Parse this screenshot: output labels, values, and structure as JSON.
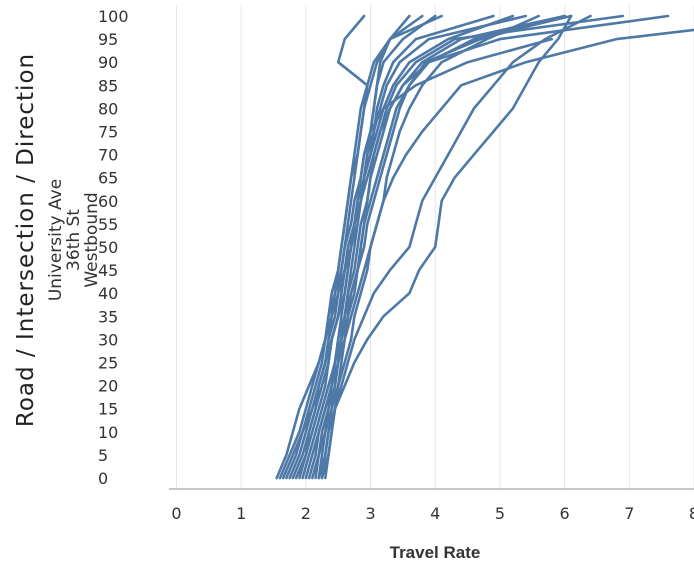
{
  "chart_data": {
    "type": "line",
    "xlabel": "Travel Rate",
    "ylabel": "",
    "xlim": [
      -0.1,
      8.0
    ],
    "ylim": [
      0,
      100
    ],
    "x_ticks": [
      "0",
      "1",
      "2",
      "3",
      "4",
      "5",
      "6",
      "7",
      "8"
    ],
    "y_ticks": [
      "0",
      "5",
      "10",
      "15",
      "20",
      "25",
      "30",
      "35",
      "40",
      "45",
      "50",
      "55",
      "60",
      "65",
      "70",
      "75",
      "80",
      "85",
      "90",
      "95",
      "100"
    ],
    "row_header": {
      "title": "Road / Intersection / Direction",
      "values": [
        "University Ave",
        "36th St",
        "Westbound"
      ]
    },
    "grid": {
      "vertical": true,
      "horizontal": false
    },
    "color": "#4e79a7",
    "series": [
      {
        "x": [
          1.55,
          1.7,
          1.8,
          1.9,
          2.05,
          2.2,
          2.3,
          2.4,
          2.45,
          2.55,
          2.6,
          2.7,
          2.75,
          2.85,
          2.9,
          3.0,
          3.2,
          3.7,
          4.5,
          5.8
        ],
        "y": [
          0,
          5,
          10,
          15,
          20,
          25,
          30,
          35,
          40,
          45,
          50,
          55,
          60,
          65,
          70,
          75,
          80,
          85,
          90,
          95
        ]
      },
      {
        "x": [
          1.65,
          1.8,
          1.95,
          2.05,
          2.15,
          2.25,
          2.3,
          2.35,
          2.4,
          2.5,
          2.55,
          2.6,
          2.65,
          2.7,
          2.75,
          2.8,
          2.85,
          2.95,
          3.05,
          3.3,
          3.8
        ],
        "y": [
          0,
          5,
          10,
          15,
          20,
          25,
          30,
          35,
          40,
          45,
          50,
          55,
          60,
          65,
          70,
          75,
          80,
          85,
          90,
          95,
          100
        ]
      },
      {
        "x": [
          1.75,
          1.9,
          2.0,
          2.1,
          2.2,
          2.3,
          2.35,
          2.45,
          2.5,
          2.6,
          2.65,
          2.75,
          2.8,
          2.9,
          3.0,
          3.1,
          3.2,
          3.35,
          3.6,
          4.2,
          5.2
        ],
        "y": [
          0,
          5,
          10,
          15,
          20,
          25,
          30,
          35,
          40,
          45,
          50,
          55,
          60,
          65,
          70,
          75,
          80,
          85,
          90,
          95,
          100
        ]
      },
      {
        "x": [
          1.85,
          2.0,
          2.1,
          2.2,
          2.3,
          2.35,
          2.4,
          2.5,
          2.55,
          2.6,
          2.7,
          2.75,
          2.8,
          2.85,
          2.9,
          3.0,
          3.05,
          3.1,
          3.2,
          3.5,
          4.0
        ],
        "y": [
          0,
          5,
          10,
          15,
          20,
          25,
          30,
          35,
          40,
          45,
          50,
          55,
          60,
          65,
          70,
          75,
          80,
          85,
          90,
          95,
          100
        ]
      },
      {
        "x": [
          1.95,
          2.05,
          2.15,
          2.25,
          2.35,
          2.45,
          2.5,
          2.6,
          2.7,
          2.8,
          2.85,
          2.9,
          3.0,
          3.1,
          3.2,
          3.3,
          3.4,
          3.6,
          3.9,
          4.6,
          6.1
        ],
        "y": [
          0,
          5,
          10,
          15,
          20,
          25,
          30,
          35,
          40,
          45,
          50,
          55,
          60,
          65,
          70,
          75,
          80,
          85,
          90,
          95,
          100
        ]
      },
      {
        "x": [
          2.05,
          2.15,
          2.2,
          2.3,
          2.4,
          2.45,
          2.55,
          2.6,
          2.65,
          2.75,
          2.8,
          2.85,
          2.95,
          3.0,
          3.05,
          3.15,
          3.25,
          3.4,
          3.7,
          4.3,
          6.9
        ],
        "y": [
          0,
          5,
          10,
          15,
          20,
          25,
          30,
          35,
          40,
          45,
          50,
          55,
          60,
          65,
          70,
          75,
          80,
          85,
          90,
          95,
          100
        ]
      },
      {
        "x": [
          2.15,
          2.2,
          2.3,
          2.35,
          2.45,
          2.5,
          2.6,
          2.65,
          2.75,
          2.8,
          2.85,
          2.9,
          2.95,
          3.0,
          3.1,
          3.2,
          3.3,
          3.5,
          3.9,
          5.0,
          7.6
        ],
        "y": [
          0,
          5,
          10,
          15,
          20,
          25,
          30,
          35,
          40,
          45,
          50,
          55,
          60,
          65,
          70,
          75,
          80,
          85,
          90,
          95,
          100
        ]
      },
      {
        "x": [
          2.25,
          2.3,
          2.35,
          2.4,
          2.45,
          2.5,
          2.55,
          2.6,
          2.65,
          2.7,
          2.75,
          2.8,
          2.85,
          2.9,
          2.95,
          3.0,
          3.05,
          3.1,
          3.15,
          3.3,
          3.6
        ],
        "y": [
          0,
          5,
          10,
          15,
          20,
          25,
          30,
          35,
          40,
          45,
          50,
          55,
          60,
          65,
          70,
          75,
          80,
          85,
          90,
          95,
          100
        ]
      },
      {
        "x": [
          1.7,
          1.85,
          1.95,
          2.1,
          2.2,
          2.3,
          2.4,
          2.5,
          2.6,
          2.65,
          2.7,
          2.75,
          2.85,
          2.95,
          3.05,
          3.15,
          3.3,
          3.5,
          3.8,
          4.4,
          6.0
        ],
        "y": [
          0,
          5,
          10,
          15,
          20,
          25,
          30,
          35,
          40,
          45,
          50,
          55,
          60,
          65,
          70,
          75,
          80,
          85,
          90,
          95,
          100
        ]
      },
      {
        "x": [
          1.9,
          2.0,
          2.05,
          2.15,
          2.2,
          2.3,
          2.35,
          2.4,
          2.5,
          2.55,
          2.6,
          2.65,
          2.7,
          2.75,
          2.8,
          2.85,
          2.9,
          3.0,
          3.1,
          3.3,
          4.1
        ],
        "y": [
          0,
          5,
          10,
          15,
          20,
          25,
          30,
          35,
          40,
          45,
          50,
          55,
          60,
          65,
          70,
          75,
          80,
          85,
          90,
          95,
          100
        ]
      },
      {
        "x": [
          2.0,
          2.1,
          2.2,
          2.3,
          2.4,
          2.5,
          2.55,
          2.65,
          2.7,
          2.8,
          2.9,
          2.95,
          3.05,
          3.15,
          3.25,
          3.35,
          3.45,
          3.6,
          3.85,
          4.7,
          6.0
        ],
        "y": [
          0,
          5,
          10,
          15,
          20,
          25,
          30,
          35,
          40,
          45,
          50,
          55,
          60,
          65,
          70,
          75,
          80,
          85,
          90,
          95,
          100
        ]
      },
      {
        "x": [
          1.8,
          1.95,
          2.05,
          2.15,
          2.25,
          2.35,
          2.4,
          2.5,
          2.55,
          2.6,
          2.7,
          2.75,
          2.85,
          2.9,
          2.95,
          3.05,
          3.15,
          3.25,
          3.45,
          3.9,
          5.4
        ],
        "y": [
          0,
          5,
          10,
          15,
          20,
          25,
          30,
          35,
          40,
          45,
          50,
          55,
          60,
          65,
          70,
          75,
          80,
          85,
          90,
          95,
          100
        ]
      },
      {
        "x": [
          2.1,
          2.2,
          2.25,
          2.35,
          2.4,
          2.45,
          2.5,
          2.55,
          2.6,
          2.65,
          2.7,
          2.8,
          2.85,
          2.9,
          3.0,
          3.05,
          3.1,
          3.2,
          3.35,
          3.7,
          4.9
        ],
        "y": [
          0,
          5,
          10,
          15,
          20,
          25,
          30,
          35,
          40,
          45,
          50,
          55,
          60,
          65,
          70,
          75,
          80,
          85,
          90,
          95,
          100
        ]
      },
      {
        "x": [
          2.2,
          2.25,
          2.3,
          2.4,
          2.5,
          2.6,
          2.7,
          2.75,
          2.85,
          2.95,
          3.0,
          3.1,
          3.2,
          3.25,
          3.35,
          3.45,
          3.6,
          3.8,
          4.1,
          4.8,
          5.6
        ],
        "y": [
          0,
          5,
          10,
          15,
          20,
          25,
          30,
          35,
          40,
          45,
          50,
          55,
          60,
          65,
          70,
          75,
          80,
          85,
          90,
          95,
          100
        ]
      },
      {
        "x": [
          1.6,
          1.75,
          1.9,
          2.0,
          2.1,
          2.2,
          2.3,
          2.35,
          2.45,
          2.5,
          2.55,
          2.6,
          2.65,
          2.7,
          2.8,
          2.85,
          2.9,
          2.95,
          2.5,
          2.6,
          2.9
        ],
        "y": [
          0,
          5,
          10,
          15,
          20,
          25,
          30,
          35,
          40,
          45,
          50,
          55,
          60,
          65,
          70,
          75,
          80,
          85,
          90,
          95,
          100
        ]
      },
      {
        "x": [
          2.3,
          2.35,
          2.4,
          2.45,
          2.55,
          2.65,
          2.75,
          2.9,
          3.05,
          3.3,
          3.6,
          3.7,
          3.8,
          4.0,
          4.2,
          4.4,
          4.6,
          4.9,
          5.2,
          5.7,
          6.4
        ],
        "y": [
          0,
          5,
          10,
          15,
          20,
          25,
          30,
          35,
          40,
          45,
          50,
          55,
          60,
          65,
          70,
          75,
          80,
          85,
          90,
          95,
          100
        ]
      },
      {
        "x": [
          2.2,
          2.3,
          2.35,
          2.45,
          2.6,
          2.75,
          2.95,
          3.2,
          3.6,
          3.75,
          4.0,
          4.05,
          4.1,
          4.3,
          4.6,
          4.9,
          5.2,
          5.4,
          5.6,
          5.9,
          6.1
        ],
        "y": [
          0,
          5,
          10,
          15,
          20,
          25,
          30,
          35,
          40,
          45,
          50,
          55,
          60,
          65,
          70,
          75,
          80,
          85,
          90,
          95,
          100
        ]
      },
      {
        "x": [
          2.25,
          2.35,
          2.4,
          2.45,
          2.5,
          2.55,
          2.6,
          2.7,
          2.8,
          2.9,
          3.0,
          3.1,
          3.2,
          3.35,
          3.55,
          3.8,
          4.1,
          4.4,
          5.4,
          6.8,
          8.0
        ],
        "y": [
          0,
          5,
          10,
          15,
          20,
          25,
          30,
          35,
          40,
          45,
          50,
          55,
          60,
          65,
          70,
          75,
          80,
          85,
          90,
          95,
          97
        ]
      }
    ]
  }
}
